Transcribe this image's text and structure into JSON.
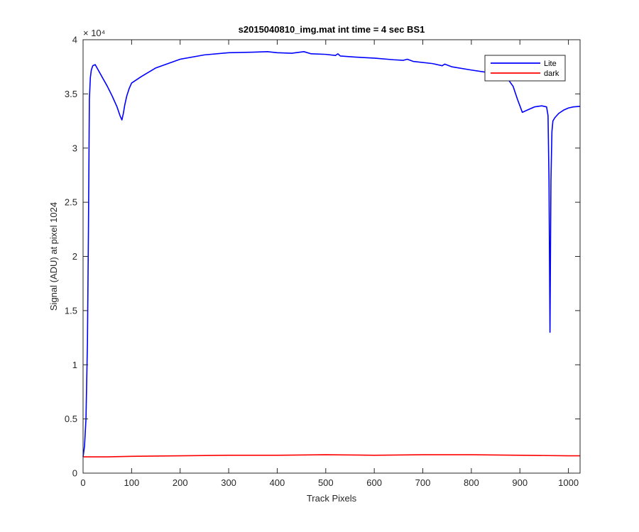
{
  "chart_data": {
    "type": "line",
    "title": "s2015040810_img.mat int time = 4 sec   BS1",
    "xlabel": "Track Pixels",
    "ylabel": "Signal (ADU) at pixel 1024",
    "y_exponent_label": "× 10⁴",
    "xlim": [
      0,
      1024
    ],
    "ylim": [
      0,
      40000
    ],
    "x_ticks": [
      0,
      100,
      200,
      300,
      400,
      500,
      600,
      700,
      800,
      900,
      1000
    ],
    "y_ticks": [
      0,
      5000,
      10000,
      15000,
      20000,
      25000,
      30000,
      35000,
      40000
    ],
    "x_tick_labels": [
      "0",
      "100",
      "200",
      "300",
      "400",
      "500",
      "600",
      "700",
      "800",
      "900",
      "1000"
    ],
    "y_tick_labels": [
      "0",
      "0.5",
      "1",
      "1.5",
      "2",
      "2.5",
      "3",
      "3.5",
      "4"
    ],
    "grid": false,
    "legend_position": "top-right",
    "series": [
      {
        "name": "Lite",
        "color": "#0000ff",
        "x": [
          0,
          3,
          6,
          9,
          11,
          13,
          15,
          17,
          20,
          25,
          30,
          40,
          50,
          60,
          70,
          76,
          80,
          83,
          86,
          90,
          95,
          100,
          120,
          150,
          200,
          250,
          300,
          350,
          380,
          400,
          430,
          455,
          470,
          500,
          520,
          525,
          530,
          560,
          600,
          640,
          660,
          668,
          680,
          720,
          740,
          745,
          760,
          800,
          830,
          860,
          870,
          878,
          886,
          895,
          905,
          915,
          930,
          945,
          955,
          958,
          960,
          962,
          964,
          966,
          968,
          972,
          980,
          990,
          1000,
          1010,
          1024
        ],
        "y": [
          1500,
          2500,
          5000,
          12000,
          22000,
          34500,
          36500,
          37200,
          37600,
          37700,
          37300,
          36500,
          35700,
          34800,
          33800,
          33000,
          32600,
          33200,
          34000,
          34800,
          35500,
          36000,
          36600,
          37400,
          38200,
          38600,
          38800,
          38850,
          38900,
          38800,
          38750,
          38900,
          38700,
          38650,
          38550,
          38700,
          38500,
          38400,
          38300,
          38150,
          38100,
          38200,
          38000,
          37800,
          37600,
          37750,
          37500,
          37200,
          37000,
          36800,
          36500,
          36200,
          35700,
          34500,
          33300,
          33500,
          33800,
          33900,
          33800,
          33000,
          27000,
          13000,
          27000,
          31500,
          32500,
          32800,
          33200,
          33500,
          33700,
          33800,
          33850
        ]
      },
      {
        "name": "dark",
        "color": "#ff0000",
        "x": [
          0,
          50,
          100,
          200,
          300,
          400,
          500,
          600,
          700,
          800,
          900,
          1000,
          1024
        ],
        "y": [
          1500,
          1500,
          1550,
          1600,
          1650,
          1650,
          1700,
          1650,
          1700,
          1700,
          1650,
          1600,
          1600
        ]
      }
    ]
  }
}
